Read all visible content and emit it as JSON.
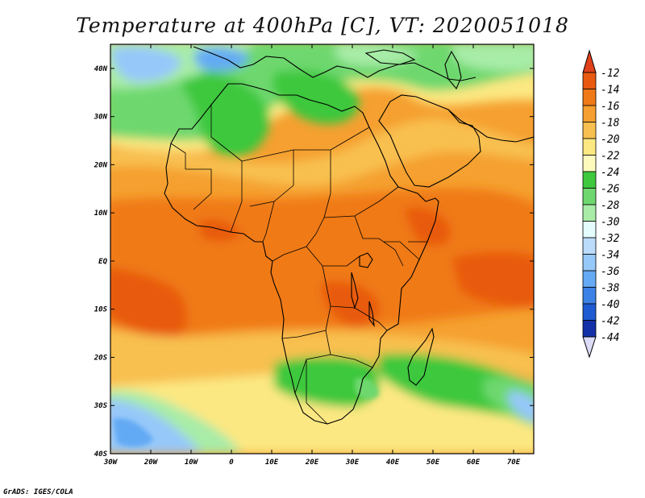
{
  "title": "Temperature at 400hPa [C], VT: 2020051018",
  "credit": "GrADS: IGES/COLA",
  "map": {
    "variable": "Temperature",
    "level": "400hPa",
    "units": "C",
    "valid_time": "2020051018",
    "lon_range": [
      -30,
      75
    ],
    "lat_range": [
      -40,
      45
    ],
    "lon_ticks": [
      {
        "value": -30,
        "label": "30W"
      },
      {
        "value": -20,
        "label": "20W"
      },
      {
        "value": -10,
        "label": "10W"
      },
      {
        "value": 0,
        "label": "0"
      },
      {
        "value": 10,
        "label": "10E"
      },
      {
        "value": 20,
        "label": "20E"
      },
      {
        "value": 30,
        "label": "30E"
      },
      {
        "value": 40,
        "label": "40E"
      },
      {
        "value": 50,
        "label": "50E"
      },
      {
        "value": 60,
        "label": "60E"
      },
      {
        "value": 70,
        "label": "70E"
      }
    ],
    "lat_ticks": [
      {
        "value": 40,
        "label": "40N"
      },
      {
        "value": 30,
        "label": "30N"
      },
      {
        "value": 20,
        "label": "20N"
      },
      {
        "value": 10,
        "label": "10N"
      },
      {
        "value": 0,
        "label": "EQ"
      },
      {
        "value": -10,
        "label": "10S"
      },
      {
        "value": -20,
        "label": "20S"
      },
      {
        "value": -30,
        "label": "30S"
      },
      {
        "value": -40,
        "label": "40S"
      }
    ]
  },
  "colorbar": {
    "levels": [
      "-12",
      "-14",
      "-16",
      "-18",
      "-20",
      "-22",
      "-24",
      "-26",
      "-28",
      "-30",
      "-32",
      "-34",
      "-36",
      "-38",
      "-40",
      "-42",
      "-44"
    ],
    "colors": [
      "#e85a10",
      "#f07a18",
      "#f5a030",
      "#f8c050",
      "#fce882",
      "#fefabe",
      "#3ec83e",
      "#6ed86e",
      "#a8eca8",
      "#e4fcfc",
      "#bcdcfc",
      "#96c8fa",
      "#64aaf4",
      "#3c82e6",
      "#1e5ad2",
      "#1430a8",
      "#0c0c78"
    ],
    "top_color": "#e0401a",
    "bottom_color": "#dcdcf8"
  }
}
